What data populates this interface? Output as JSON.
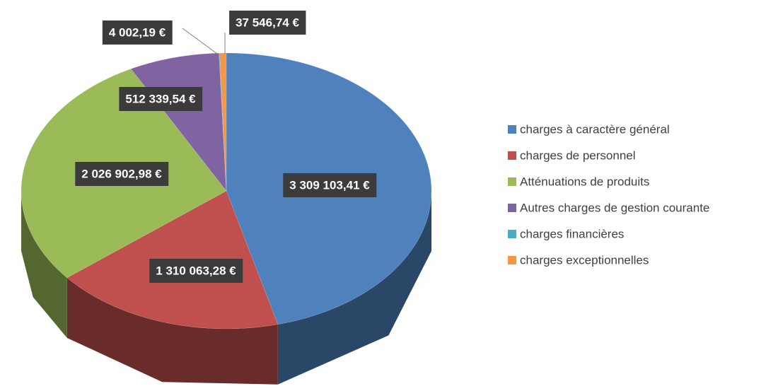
{
  "chart_data": {
    "type": "pie",
    "categories": [
      "charges à caractère général",
      "charges de personnel",
      "Atténuations de produits",
      "Autres charges de gestion courante",
      "charges financières",
      "charges exceptionnelles"
    ],
    "values": [
      3309103.41,
      1310063.28,
      2026902.98,
      512339.54,
      4002.19,
      37546.74
    ],
    "value_labels": [
      "3 309 103,41 €",
      "1 310 063,28 €",
      "2 026 902,98 €",
      "512 339,54 €",
      "4 002,19 €",
      "37 546,74 €"
    ],
    "colors": [
      "#4f81bd",
      "#c0504d",
      "#9bbb59",
      "#8064a2",
      "#4bacc6",
      "#f79646"
    ],
    "legend": "right"
  }
}
